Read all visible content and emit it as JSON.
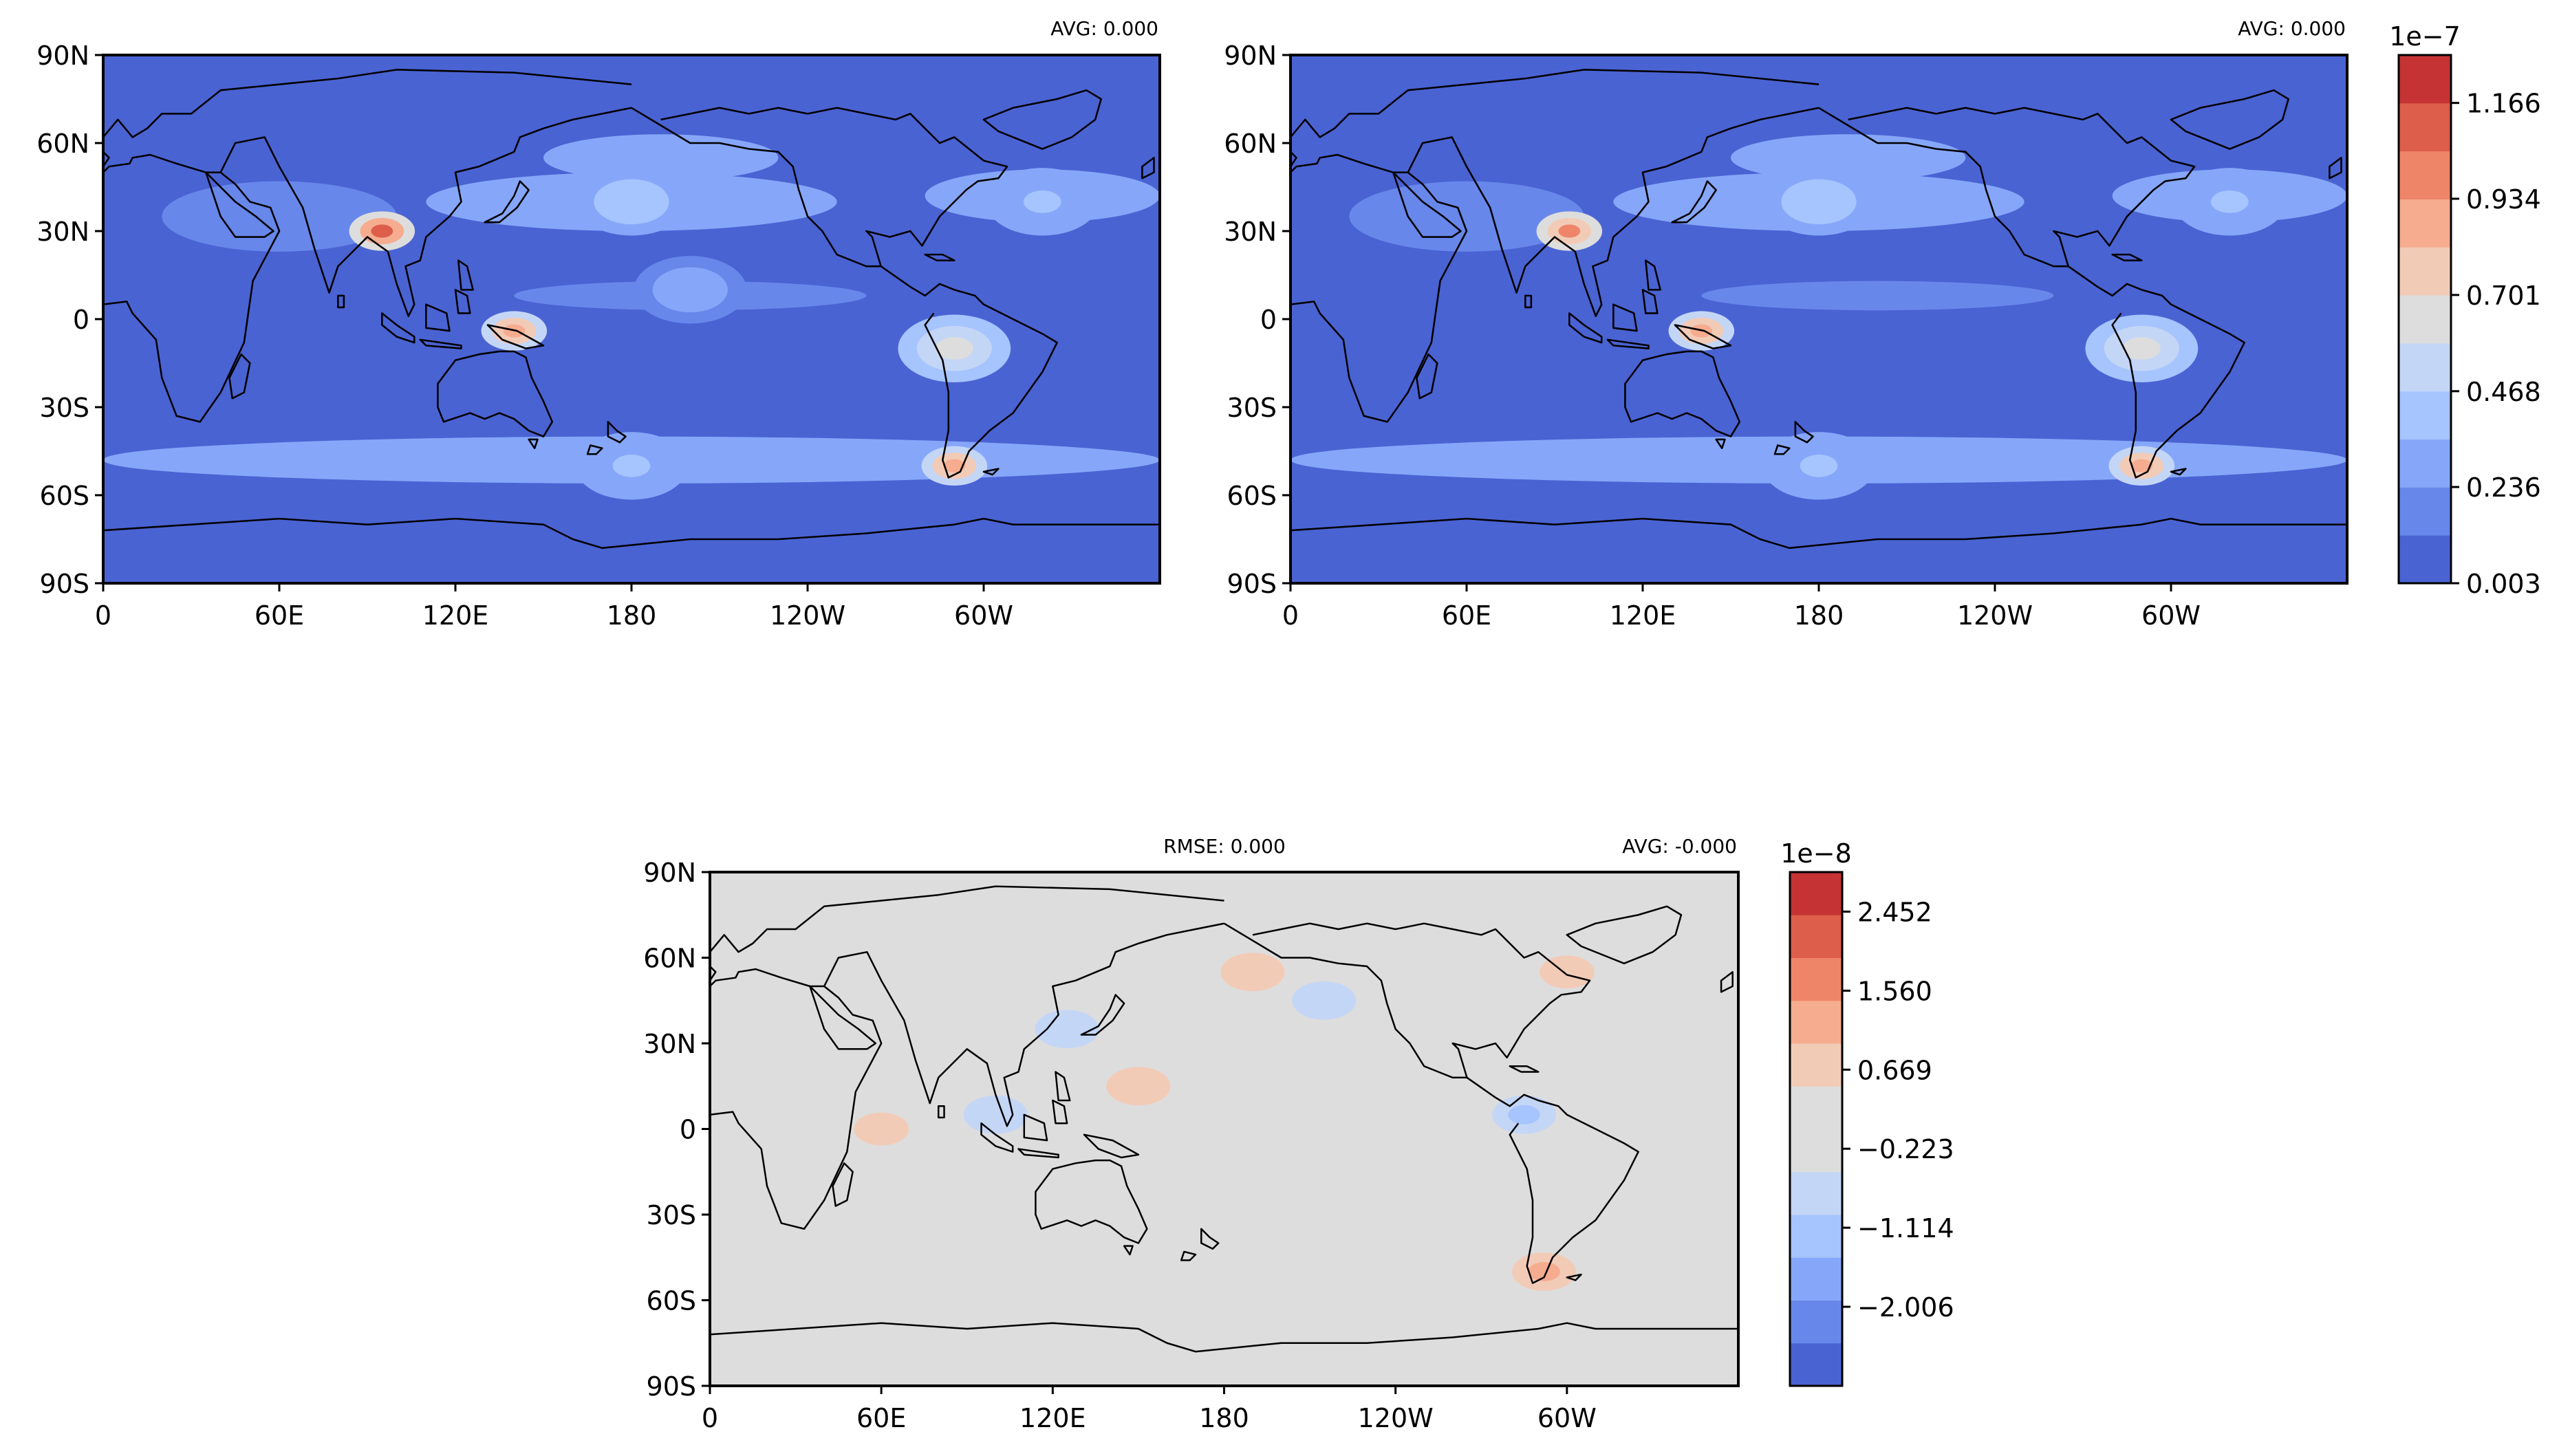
{
  "chart_data": [
    {
      "type": "heatmap",
      "subtype": "global-map-filled-contour",
      "title": "",
      "stat_left": "",
      "stat_right": "AVG: 0.000",
      "xlabel": "",
      "ylabel": "",
      "x_ticks": [
        "0",
        "60E",
        "120E",
        "180",
        "120W",
        "60W"
      ],
      "y_ticks": [
        "90N",
        "60N",
        "30N",
        "0",
        "30S",
        "60S",
        "90S"
      ],
      "x_tick_values": [
        0,
        60,
        120,
        180,
        240,
        300
      ],
      "y_tick_values": [
        90,
        60,
        30,
        0,
        -30,
        -60,
        -90
      ],
      "xlim": [
        0,
        360
      ],
      "ylim": [
        -90,
        90
      ],
      "colorbar": "shared",
      "field_features": [
        {
          "lon": 95,
          "lat": 30,
          "value": 1.05,
          "unit_scale": "1e-7",
          "desc": "Tibetan plateau max"
        },
        {
          "lon": 140,
          "lat": -4,
          "value": 0.9,
          "unit_scale": "1e-7",
          "desc": "New Guinea max"
        },
        {
          "lon": 290,
          "lat": -50,
          "value": 0.9,
          "unit_scale": "1e-7",
          "desc": "southern Andes max"
        },
        {
          "lon": 290,
          "lat": -10,
          "value": 0.7,
          "unit_scale": "1e-7",
          "desc": "Andes"
        },
        {
          "lon": 180,
          "lat": 40,
          "value": 0.45,
          "unit_scale": "1e-7",
          "desc": "North Pacific band"
        },
        {
          "lon": 320,
          "lat": 40,
          "value": 0.4,
          "unit_scale": "1e-7",
          "desc": "North Atlantic band"
        },
        {
          "lon": 180,
          "lat": -50,
          "value": 0.4,
          "unit_scale": "1e-7",
          "desc": "Southern Ocean band"
        },
        {
          "lon": 200,
          "lat": 10,
          "value": 0.3,
          "unit_scale": "1e-7",
          "desc": "ITCZ band"
        }
      ]
    },
    {
      "type": "heatmap",
      "subtype": "global-map-filled-contour",
      "title": "",
      "stat_left": "",
      "stat_right": "AVG: 0.000",
      "xlabel": "",
      "ylabel": "",
      "x_ticks": [
        "0",
        "60E",
        "120E",
        "180",
        "120W",
        "60W"
      ],
      "y_ticks": [
        "90N",
        "60N",
        "30N",
        "0",
        "30S",
        "60S",
        "90S"
      ],
      "x_tick_values": [
        0,
        60,
        120,
        180,
        240,
        300
      ],
      "y_tick_values": [
        90,
        60,
        30,
        0,
        -30,
        -60,
        -90
      ],
      "xlim": [
        0,
        360
      ],
      "ylim": [
        -90,
        90
      ],
      "colorbar": {
        "offset_label": "1e−7",
        "min": 0.003,
        "max": 1.282,
        "n_levels": 11,
        "tick_labels": [
          "1.166",
          "0.934",
          "0.701",
          "0.468",
          "0.236",
          "0.003"
        ],
        "tick_values": [
          1.166,
          0.934,
          0.701,
          0.468,
          0.236,
          0.003
        ],
        "colors": [
          "#4a63d3",
          "#6887ea",
          "#86a7f9",
          "#a6c4fd",
          "#c4d6f6",
          "#dddddd",
          "#f2cbb7",
          "#f6ac8f",
          "#ee8569",
          "#dc5e4b",
          "#c53334"
        ]
      },
      "field_features": [
        {
          "lon": 95,
          "lat": 30,
          "value": 1.0,
          "unit_scale": "1e-7",
          "desc": "Tibetan plateau max"
        },
        {
          "lon": 140,
          "lat": -4,
          "value": 0.9,
          "unit_scale": "1e-7",
          "desc": "New Guinea max"
        },
        {
          "lon": 290,
          "lat": -50,
          "value": 0.9,
          "unit_scale": "1e-7",
          "desc": "southern Andes max"
        },
        {
          "lon": 290,
          "lat": -10,
          "value": 0.7,
          "unit_scale": "1e-7",
          "desc": "Andes"
        },
        {
          "lon": 180,
          "lat": 40,
          "value": 0.45,
          "unit_scale": "1e-7",
          "desc": "North Pacific band"
        },
        {
          "lon": 320,
          "lat": 40,
          "value": 0.4,
          "unit_scale": "1e-7",
          "desc": "North Atlantic band"
        },
        {
          "lon": 180,
          "lat": -50,
          "value": 0.4,
          "unit_scale": "1e-7",
          "desc": "Southern Ocean band"
        }
      ]
    },
    {
      "type": "heatmap",
      "subtype": "global-map-filled-contour-difference",
      "title": "",
      "stat_left": "",
      "stat_center": "RMSE: 0.000",
      "stat_right": "AVG: -0.000",
      "xlabel": "",
      "ylabel": "",
      "x_ticks": [
        "0",
        "60E",
        "120E",
        "180",
        "120W",
        "60W"
      ],
      "y_ticks": [
        "90N",
        "60N",
        "30N",
        "0",
        "30S",
        "60S",
        "90S"
      ],
      "x_tick_values": [
        0,
        60,
        120,
        180,
        240,
        300
      ],
      "y_tick_values": [
        90,
        60,
        30,
        0,
        -30,
        -60,
        -90
      ],
      "xlim": [
        0,
        360
      ],
      "ylim": [
        -90,
        90
      ],
      "colorbar": {
        "offset_label": "1e−8",
        "min": -2.898,
        "max": 2.898,
        "n_levels": 13,
        "tick_labels": [
          "2.452",
          "1.560",
          "0.669",
          "−0.223",
          "−1.114",
          "−2.006"
        ],
        "tick_values": [
          2.452,
          1.56,
          0.669,
          -0.223,
          -1.114,
          -2.006
        ],
        "colors": [
          "#4a63d3",
          "#6887ea",
          "#86a7f9",
          "#a6c4fd",
          "#c4d6f6",
          "#dddddd",
          "#dddddd",
          "#f2cbb7",
          "#f6ac8f",
          "#ee8569",
          "#dc5e4b",
          "#c53334"
        ]
      },
      "field_features": [
        {
          "lon": 150,
          "lat": 15,
          "value": 0.9,
          "unit_scale": "1e-8",
          "desc": "western Pacific warm pool positive"
        },
        {
          "lon": 60,
          "lat": 0,
          "value": 0.7,
          "unit_scale": "1e-8",
          "desc": "Arabian Sea positive"
        },
        {
          "lon": 190,
          "lat": 55,
          "value": 0.9,
          "unit_scale": "1e-8",
          "desc": "Aleutian positive"
        },
        {
          "lon": 300,
          "lat": 55,
          "value": 0.8,
          "unit_scale": "1e-8",
          "desc": "Labrador positive"
        },
        {
          "lon": 292,
          "lat": -50,
          "value": 1.2,
          "unit_scale": "1e-8",
          "desc": "southern Andes positive"
        },
        {
          "lon": 125,
          "lat": 35,
          "value": -0.9,
          "unit_scale": "1e-8",
          "desc": "East Asia negative"
        },
        {
          "lon": 215,
          "lat": 45,
          "value": -0.9,
          "unit_scale": "1e-8",
          "desc": "North Pacific negative"
        },
        {
          "lon": 285,
          "lat": 5,
          "value": -1.0,
          "unit_scale": "1e-8",
          "desc": "Panama negative"
        },
        {
          "lon": 100,
          "lat": 5,
          "value": -0.9,
          "unit_scale": "1e-8",
          "desc": "Maritime Continent negative"
        }
      ]
    }
  ]
}
